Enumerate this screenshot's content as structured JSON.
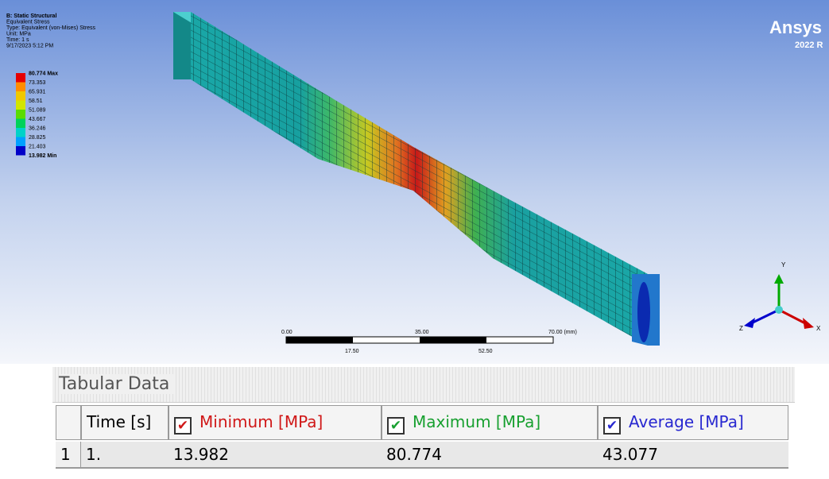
{
  "viewport": {
    "header": [
      "B: Static Structural",
      "Equivalent Stress",
      "Type: Equivalent (von-Mises) Stress",
      "Unit: MPa",
      "Time: 1 s",
      "9/17/2023 5:12 PM"
    ],
    "legend": {
      "labels": [
        "80.774 Max",
        "73.353",
        "65.931",
        "58.51",
        "51.089",
        "43.667",
        "36.246",
        "28.825",
        "21.403",
        "13.982 Min"
      ],
      "colors": [
        "#e60000",
        "#ff8c00",
        "#f0c800",
        "#d2e600",
        "#5adc00",
        "#00d25a",
        "#00d2c8",
        "#00a0ff",
        "#0000c8"
      ]
    },
    "brand": {
      "name": "Ansys",
      "version": "2022 R"
    },
    "scale_bar": {
      "top": [
        "0.00",
        "35.00",
        "70.00 (mm)"
      ],
      "bottom": [
        "17.50",
        "52.50"
      ]
    },
    "triad": {
      "y": "Y",
      "z": "Z",
      "x": "X"
    }
  },
  "tabular_data": {
    "title": "Tabular Data",
    "columns": [
      "Time [s]",
      "Minimum [MPa]",
      "Maximum [MPa]",
      "Average [MPa]"
    ],
    "rows": [
      {
        "index": "1",
        "cells": [
          "1.",
          "13.982",
          "80.774",
          "43.077"
        ]
      }
    ]
  }
}
